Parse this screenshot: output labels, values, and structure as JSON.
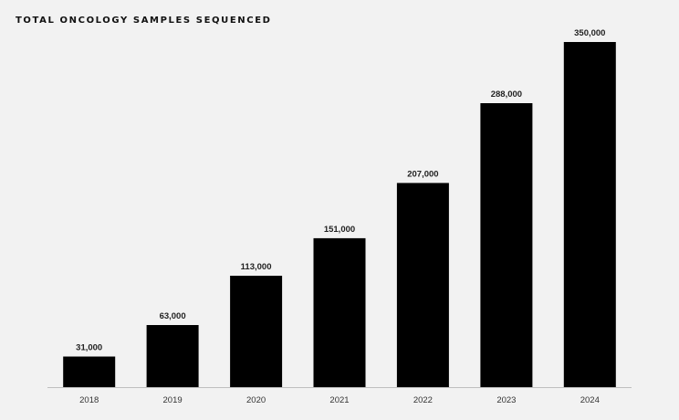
{
  "chart_data": {
    "type": "bar",
    "title": "TOTAL ONCOLOGY SAMPLES SEQUENCED",
    "xlabel": "",
    "ylabel": "",
    "categories": [
      "2018",
      "2019",
      "2020",
      "2021",
      "2022",
      "2023",
      "2024"
    ],
    "values": [
      31000,
      63000,
      113000,
      151000,
      207000,
      288000,
      350000
    ],
    "data_labels": [
      "31,000",
      "63,000",
      "113,000",
      "151,000",
      "207,000",
      "288,000",
      "350,000"
    ],
    "ylim": [
      0,
      350000
    ],
    "grid": false,
    "legend": "none",
    "bar_color": "#000000",
    "axis_color": "#bfbfbf"
  }
}
